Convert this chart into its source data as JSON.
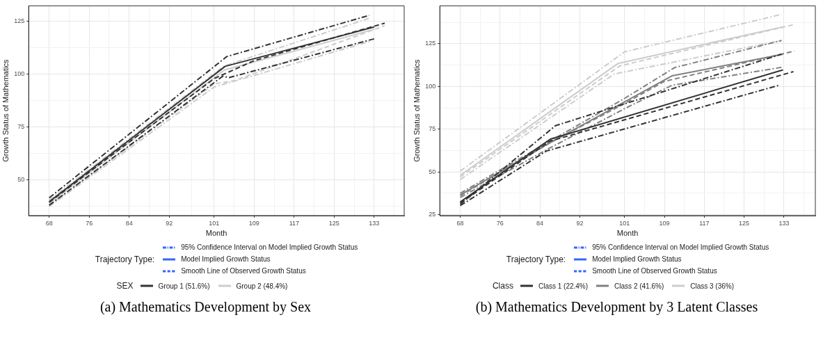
{
  "chart_data": [
    {
      "type": "line",
      "title": "(a) Mathematics Development by Sex",
      "xlabel": "Month",
      "ylabel": "Growth Status of Mathematics",
      "legend_title": "SEX",
      "legend": "bottom",
      "grid": true,
      "marker": "none",
      "annotations": [
        "Trajectory Type:",
        "95% Confidence Interval on Model Implied Growth Status",
        "Model Implied Growth Status",
        "Smooth Line of Observed Growth Status"
      ],
      "xlim": [
        63.9,
        139
      ],
      "ylim": [
        33.2,
        132.4
      ],
      "xticks": [
        68,
        {
          "value": 72,
          "label": null
        },
        76,
        {
          "value": 80,
          "label": null
        },
        84,
        {
          "value": 88,
          "label": null
        },
        92,
        {
          "value": 96.5,
          "label": null
        },
        101,
        {
          "value": 105,
          "label": null
        },
        109,
        {
          "value": 113,
          "label": null
        },
        117,
        {
          "value": 121,
          "label": null
        },
        125,
        {
          "value": 129,
          "label": null
        },
        133,
        {
          "value": 137,
          "label": null
        }
      ],
      "yticks": [
        {
          "value": 37.5,
          "label": null
        },
        50,
        {
          "value": 62.5,
          "label": null
        },
        75,
        {
          "value": 87.5,
          "label": null
        },
        100,
        {
          "value": 112.5,
          "label": null
        },
        125
      ],
      "series": [
        {
          "color": "#333333",
          "line_style": "dashdot",
          "x": [
            68,
            103.5,
            132
          ],
          "values": [
            41.6,
            108.4,
            127.9
          ]
        },
        {
          "name": "Group 1 (51.6%)",
          "color": "#333333",
          "line_style": "solid",
          "x": [
            68,
            103.2,
            133
          ],
          "values": [
            39.8,
            103.8,
            122.4
          ]
        },
        {
          "color": "#333333",
          "line_style": "dashed",
          "x": [
            68,
            84,
            101,
            109,
            135.1
          ],
          "values": [
            39.5,
            68,
            98,
            106.5,
            124.2
          ]
        },
        {
          "color": "#333333",
          "line_style": "dashdot",
          "x": [
            68,
            102.7,
            104,
            133
          ],
          "values": [
            38.1,
            99.1,
            98.5,
            116.8
          ]
        },
        {
          "color": "#cccccc",
          "line_style": "dashdot",
          "x": [
            68,
            103,
            132
          ],
          "values": [
            40.5,
            104,
            126.5
          ]
        },
        {
          "name": "Group 2 (48.4%)",
          "color": "#cccccc",
          "line_style": "solid",
          "x": [
            68,
            103,
            133
          ],
          "values": [
            39,
            102,
            121.3
          ]
        },
        {
          "color": "#cccccc",
          "line_style": "dashed",
          "x": [
            68,
            101,
            105,
            135.1
          ],
          "values": [
            38,
            95.5,
            97,
            123
          ]
        },
        {
          "color": "#cccccc",
          "line_style": "dashdot",
          "x": [
            68,
            101,
            109,
            132
          ],
          "values": [
            37.5,
            94,
            99.5,
            115.5
          ]
        }
      ]
    },
    {
      "type": "line",
      "title": "(b) Mathematics Development by 3 Latent Classes",
      "xlabel": "Month",
      "ylabel": "Growth Status of Mathematics",
      "legend_title": "Class",
      "legend": "bottom",
      "grid": true,
      "marker": "none",
      "annotations": [
        "Trajectory Type:",
        "95% Confidence Interval on Model Implied Growth Status",
        "Model Implied Growth Status",
        "Smooth Line of Observed Growth Status"
      ],
      "xlim": [
        63.9,
        139.3
      ],
      "ylim": [
        24.4,
        147.2
      ],
      "xticks": [
        68,
        {
          "value": 72,
          "label": null
        },
        76,
        {
          "value": 80,
          "label": null
        },
        84,
        {
          "value": 88,
          "label": null
        },
        92,
        {
          "value": 96.5,
          "label": null
        },
        101,
        {
          "value": 105,
          "label": null
        },
        109,
        {
          "value": 113,
          "label": null
        },
        117,
        {
          "value": 121,
          "label": null
        },
        125,
        {
          "value": 129,
          "label": null
        },
        133,
        {
          "value": 137,
          "label": null
        }
      ],
      "yticks": [
        25,
        {
          "value": 37.5,
          "label": null
        },
        50,
        {
          "value": 62.5,
          "label": null
        },
        75,
        {
          "value": 87.5,
          "label": null
        },
        100,
        {
          "value": 112.5,
          "label": null
        },
        125,
        {
          "value": 137.5,
          "label": null
        }
      ],
      "series": [
        {
          "color": "#333333",
          "line_style": "dashdot",
          "x": [
            68,
            87.1,
            132.5
          ],
          "values": [
            31,
            77,
            118.9
          ]
        },
        {
          "name": "Class 1 (22.4%)",
          "color": "#333333",
          "line_style": "solid",
          "x": [
            68,
            86.1,
            132.8
          ],
          "values": [
            32.4,
            69.2,
            109.7
          ]
        },
        {
          "color": "#333333",
          "line_style": "dashed",
          "x": [
            68,
            86,
            134.9
          ],
          "values": [
            31.7,
            68,
            108.7
          ]
        },
        {
          "color": "#333333",
          "line_style": "dashdot",
          "x": [
            68,
            85.3,
            132
          ],
          "values": [
            30.2,
            62.2,
            100.7
          ]
        },
        {
          "color": "#808080",
          "line_style": "dashdot",
          "x": [
            68,
            86,
            101,
            111,
            132.5
          ],
          "values": [
            37.5,
            68,
            93,
            111,
            126.9
          ]
        },
        {
          "name": "Class 2 (41.6%)",
          "color": "#808080",
          "line_style": "solid",
          "x": [
            68,
            86,
            110.5,
            132.8
          ],
          "values": [
            36.5,
            67,
            106.2,
            118.9
          ]
        },
        {
          "color": "#808080",
          "line_style": "dashed",
          "x": [
            68,
            86,
            101,
            109,
            135.1
          ],
          "values": [
            36,
            67,
            90,
            103,
            120.7
          ]
        },
        {
          "color": "#808080",
          "line_style": "dashdot",
          "x": [
            68,
            86,
            101,
            110.5,
            132.5
          ],
          "values": [
            35,
            64,
            87,
            100.7,
            111.2
          ]
        },
        {
          "color": "#cccccc",
          "line_style": "dashdot",
          "x": [
            68,
            101,
            132.5
          ],
          "values": [
            50.5,
            120.3,
            142.2
          ]
        },
        {
          "name": "Class 3 (36%)",
          "color": "#cccccc",
          "line_style": "solid",
          "x": [
            68,
            99.7,
            132.8
          ],
          "values": [
            48,
            113.5,
            134.9
          ]
        },
        {
          "color": "#cccccc",
          "line_style": "dashed",
          "x": [
            68,
            100,
            135.1
          ],
          "values": [
            47,
            112,
            136.3
          ]
        },
        {
          "color": "#cccccc",
          "line_style": "dashdot",
          "x": [
            68,
            98.9,
            132.5
          ],
          "values": [
            45.5,
            107.3,
            126.9
          ]
        }
      ]
    }
  ]
}
